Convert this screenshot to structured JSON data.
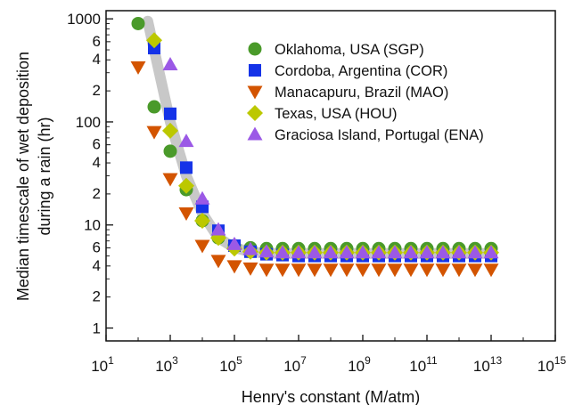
{
  "chart_data": {
    "type": "scatter",
    "title": "",
    "xlabel": "Henry's constant (M/atm)",
    "ylabel": [
      "Median timescale of wet deposition",
      "during a rain (hr)"
    ],
    "xscale": "log",
    "yscale": "log",
    "xlim": [
      10,
      1000000000000000.0
    ],
    "ylim": [
      0.75,
      1200
    ],
    "x_ticks": [
      {
        "value": 10,
        "base": "10",
        "exp": "1"
      },
      {
        "value": 1000,
        "base": "10",
        "exp": "3"
      },
      {
        "value": 100000,
        "base": "10",
        "exp": "5"
      },
      {
        "value": 10000000,
        "base": "10",
        "exp": "7"
      },
      {
        "value": 1000000000,
        "base": "10",
        "exp": "9"
      },
      {
        "value": 100000000000,
        "base": "10",
        "exp": "11"
      },
      {
        "value": 10000000000000,
        "base": "10",
        "exp": "13"
      },
      {
        "value": 1000000000000000,
        "base": "10",
        "exp": "15"
      }
    ],
    "y_major_ticks": [
      {
        "value": 1,
        "label": "1"
      },
      {
        "value": 10,
        "label": "10"
      },
      {
        "value": 100,
        "label": "100"
      },
      {
        "value": 1000,
        "label": "1000"
      }
    ],
    "y_minor_ticks": [
      {
        "value": 2,
        "label": "2"
      },
      {
        "value": 4,
        "label": "4"
      },
      {
        "value": 6,
        "label": "6"
      },
      {
        "value": 20,
        "label": "2"
      },
      {
        "value": 40,
        "label": "4"
      },
      {
        "value": 60,
        "label": "6"
      },
      {
        "value": 200,
        "label": "2"
      },
      {
        "value": 400,
        "label": "4"
      },
      {
        "value": 600,
        "label": "6"
      }
    ],
    "legend_position": "top-right",
    "grid": false,
    "series": [
      {
        "name": "Oklahoma, USA (SGP)",
        "marker": "circle",
        "color": "#4a9a2a",
        "x": [
          100,
          316,
          1000,
          3160,
          10000,
          31600,
          100000,
          316000,
          1000000,
          3160000,
          10000000,
          31600000,
          100000000,
          316000000,
          1000000000,
          3160000000,
          10000000000,
          31600000000,
          100000000000,
          316000000000,
          1000000000000,
          3160000000000,
          10000000000000
        ],
        "y": [
          900,
          140,
          52,
          22,
          11,
          7.5,
          6.3,
          6.0,
          5.9,
          5.9,
          5.9,
          5.9,
          5.9,
          5.9,
          5.9,
          5.9,
          5.9,
          5.9,
          5.9,
          5.9,
          5.9,
          5.9,
          5.9
        ]
      },
      {
        "name": "Cordoba, Argentina (COR)",
        "marker": "square",
        "color": "#1533e8",
        "x": [
          316,
          1000,
          3160,
          10000,
          31600,
          100000,
          316000,
          1000000,
          3160000,
          10000000,
          31600000,
          100000000,
          316000000,
          1000000000,
          3160000000,
          10000000000,
          31600000000,
          100000000000,
          316000000000,
          1000000000000,
          3160000000000,
          10000000000000
        ],
        "y": [
          520,
          120,
          36,
          15,
          8.8,
          6.3,
          5.5,
          5.2,
          5.1,
          5.0,
          5.0,
          5.0,
          5.0,
          5.0,
          5.0,
          5.0,
          5.0,
          5.0,
          5.0,
          5.0,
          5.0,
          5.0
        ]
      },
      {
        "name": "Manacapuru, Brazil (MAO)",
        "marker": "triangle-down",
        "color": "#d35400",
        "x": [
          100,
          316,
          1000,
          3160,
          10000,
          31600,
          100000,
          316000,
          1000000,
          3160000,
          10000000,
          31600000,
          100000000,
          316000000,
          1000000000,
          3160000000,
          10000000000,
          31600000000,
          100000000000,
          316000000000,
          1000000000000,
          3160000000000,
          10000000000000
        ],
        "y": [
          340,
          80,
          28,
          13,
          6.3,
          4.5,
          4.0,
          3.8,
          3.7,
          3.7,
          3.7,
          3.7,
          3.7,
          3.7,
          3.7,
          3.7,
          3.7,
          3.7,
          3.7,
          3.7,
          3.7,
          3.7,
          3.7
        ]
      },
      {
        "name": "Texas, USA (HOU)",
        "marker": "diamond",
        "color": "#bcc800",
        "x": [
          316,
          1000,
          3160,
          10000,
          31600,
          100000,
          316000,
          1000000,
          3160000,
          10000000,
          31600000,
          100000000,
          316000000,
          1000000000,
          3160000000,
          10000000000,
          31600000000,
          100000000000,
          316000000000,
          1000000000000,
          3160000000000,
          10000000000000
        ],
        "y": [
          620,
          82,
          24,
          11,
          7.5,
          5.9,
          5.5,
          5.4,
          5.4,
          5.4,
          5.4,
          5.4,
          5.4,
          5.4,
          5.4,
          5.4,
          5.4,
          5.4,
          5.4,
          5.4,
          5.4,
          5.4
        ]
      },
      {
        "name": "Graciosa Island, Portugal (ENA)",
        "marker": "triangle-up",
        "color": "#9b59e6",
        "x": [
          1000,
          3160,
          10000,
          31600,
          100000,
          316000,
          1000000,
          3160000,
          10000000,
          31600000,
          100000000,
          316000000,
          1000000000,
          3160000000,
          10000000000,
          31600000000,
          100000000000,
          316000000000,
          1000000000000,
          3160000000000,
          10000000000000
        ],
        "y": [
          360,
          65,
          18,
          9.0,
          6.5,
          5.8,
          5.5,
          5.4,
          5.4,
          5.4,
          5.4,
          5.4,
          5.4,
          5.4,
          5.4,
          5.4,
          5.4,
          5.4,
          5.4,
          5.4,
          5.4
        ]
      }
    ],
    "fit_band": {
      "color": "#c8c8c8",
      "x": [
        200,
        1000,
        3160,
        10000,
        31600,
        100000,
        316000,
        1000000,
        10000000000000
      ],
      "y": [
        950,
        100,
        30,
        13,
        7.5,
        6.0,
        5.5,
        5.3,
        5.3
      ]
    }
  }
}
